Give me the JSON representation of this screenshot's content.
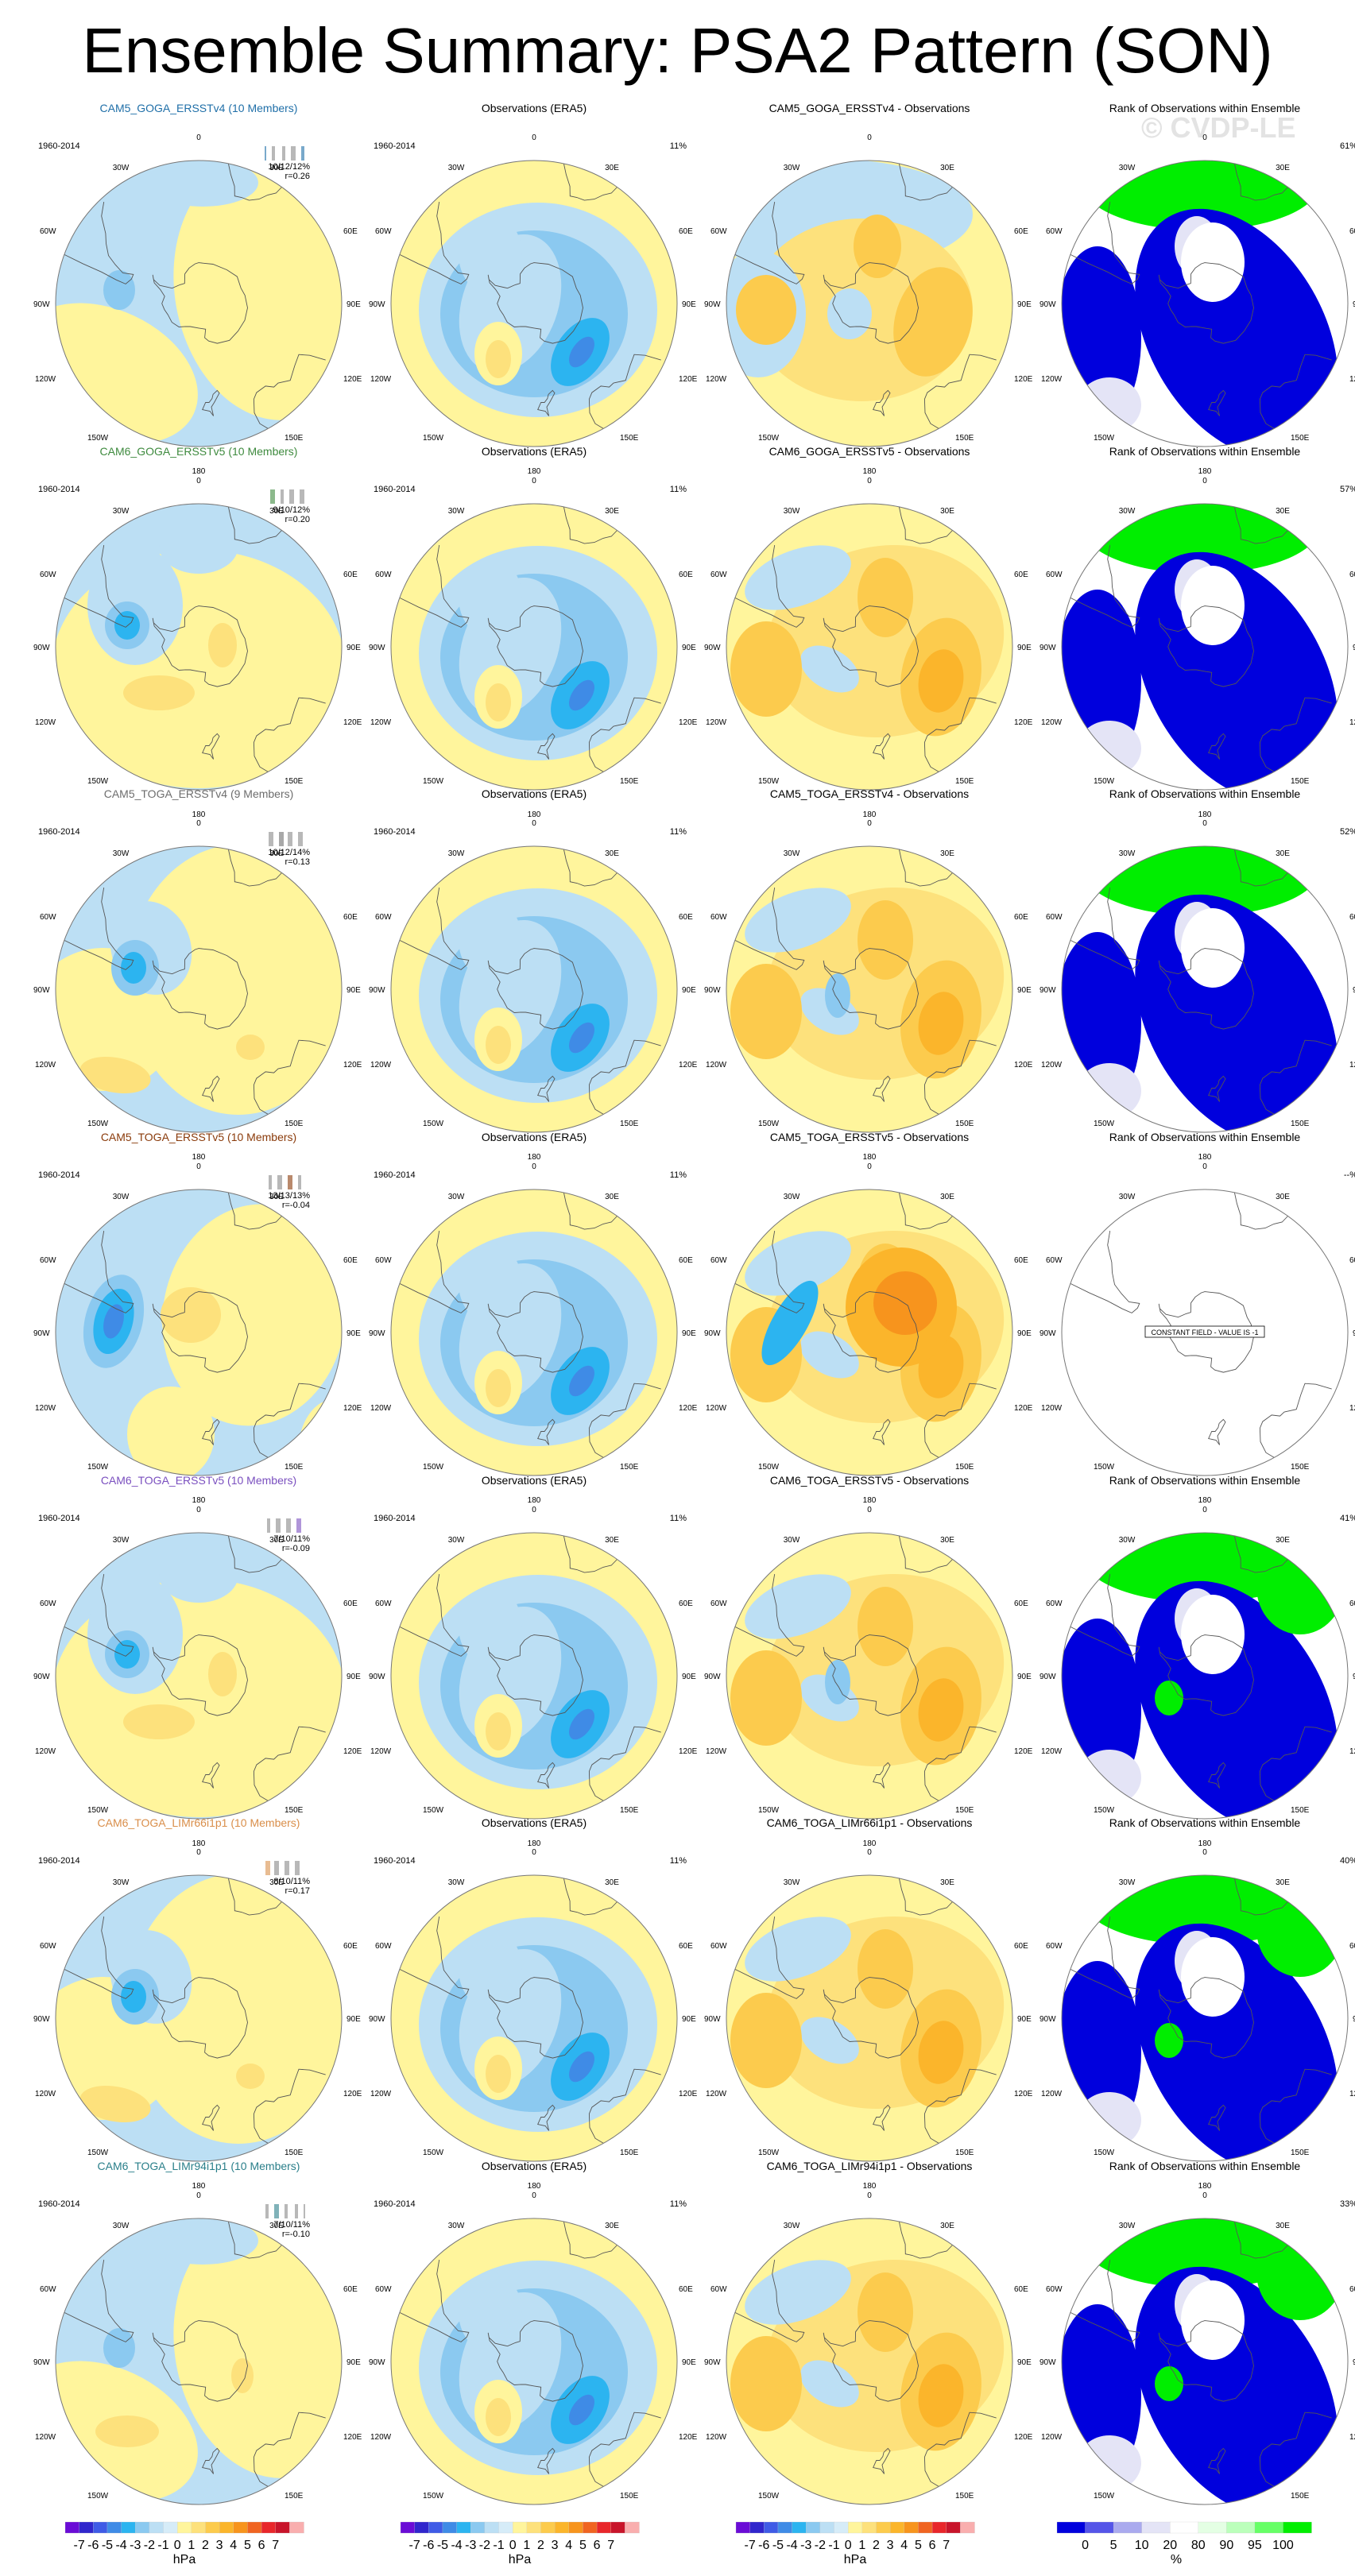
{
  "title": "Ensemble Summary: PSA2 Pattern (SON)",
  "watermark": "© CVDP-LE",
  "period": "1960-2014",
  "obs_title": "Observations (ERA5)",
  "rank_title": "Rank of Observations within Ensemble",
  "obs_pct": "11%",
  "constant_field_text": "CONSTANT FIELD - VALUE IS -1",
  "map_labels": {
    "top": "0",
    "bottom": "180",
    "n30w": "30W",
    "n30e": "30E",
    "w60": "60W",
    "e60": "60E",
    "w90": "90W",
    "e90": "90E",
    "w120": "120W",
    "e120": "120E",
    "w150": "150W",
    "e150": "150E"
  },
  "colors": {
    "neg": [
      "#6a0cd6",
      "#3026cc",
      "#3f5be6",
      "#3f8be6",
      "#2cb4f0",
      "#8bc9f0",
      "#bcdff4"
    ],
    "pos": [
      "#fff59c",
      "#fde17c",
      "#fccb4d",
      "#fbb52b",
      "#f7941d",
      "#f06421",
      "#e8262a",
      "#c8142a",
      "#f9aeae"
    ],
    "rank": [
      "#0000dd",
      "#5555e8",
      "#aaaaee",
      "#e4e4f6",
      "#ffffff",
      "#e4ffe4",
      "#bbffbb",
      "#66ff66",
      "#00ee00"
    ],
    "rows": [
      "#1f6fa8",
      "#3e8a3e",
      "#6d6d6d",
      "#8a3a0a",
      "#7a4fbf",
      "#d98e4a",
      "#2a7f8a"
    ]
  },
  "rows": [
    {
      "model": "CAM5_GOGA_ERSSTv4 (10 Members)",
      "diff_title": "CAM5_GOGA_ERSSTv4 - Observations",
      "stats1": "10/12/12%",
      "stats2": "r=0.26",
      "rank_pct": "61%"
    },
    {
      "model": "CAM6_GOGA_ERSSTv5 (10 Members)",
      "diff_title": "CAM6_GOGA_ERSSTv5 - Observations",
      "stats1": "9/10/12%",
      "stats2": "r=0.20",
      "rank_pct": "57%"
    },
    {
      "model": "CAM5_TOGA_ERSSTv4 (9 Members)",
      "diff_title": "CAM5_TOGA_ERSSTv4 - Observations",
      "stats1": "10/12/14%",
      "stats2": "r=0.13",
      "rank_pct": "52%"
    },
    {
      "model": "CAM5_TOGA_ERSSTv5 (10 Members)",
      "diff_title": "CAM5_TOGA_ERSSTv5 - Observations",
      "stats1": "13/13/13%",
      "stats2": "r=-0.04",
      "rank_pct": "--%"
    },
    {
      "model": "CAM6_TOGA_ERSSTv5 (10 Members)",
      "diff_title": "CAM6_TOGA_ERSSTv5 - Observations",
      "stats1": "7/10/11%",
      "stats2": "r=-0.09",
      "rank_pct": "41%"
    },
    {
      "model": "CAM6_TOGA_LIMr66i1p1 (10 Members)",
      "diff_title": "CAM6_TOGA_LIMr66i1p1 - Observations",
      "stats1": "8/10/11%",
      "stats2": "r=0.17",
      "rank_pct": "40%"
    },
    {
      "model": "CAM6_TOGA_LIMr94i1p1 (10 Members)",
      "diff_title": "CAM6_TOGA_LIMr94i1p1 - Observations",
      "stats1": "7/10/11%",
      "stats2": "r=-0.10",
      "rank_pct": "33%"
    }
  ],
  "chart_data": [
    {
      "type": "colorbar",
      "label": "hPa",
      "tick_labels": [
        "-7",
        "-6",
        "-5",
        "-4",
        "-3",
        "-2",
        "-1",
        "0",
        "1",
        "2",
        "3",
        "4",
        "5",
        "6",
        "7"
      ]
    },
    {
      "type": "colorbar",
      "label": "%",
      "tick_labels": [
        "0",
        "5",
        "10",
        "20",
        "80",
        "90",
        "95",
        "100"
      ]
    }
  ]
}
